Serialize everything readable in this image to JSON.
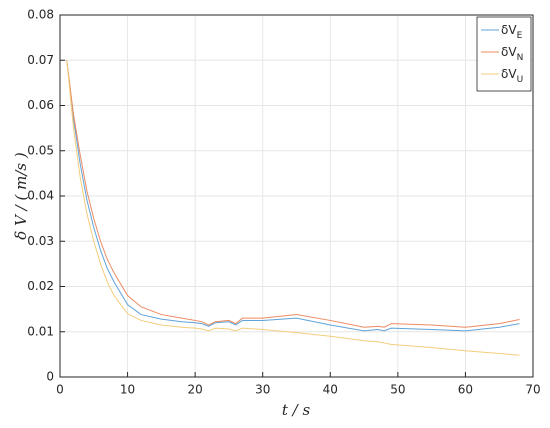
{
  "chart_data": {
    "type": "line",
    "x_label": "t  / s",
    "y_label": "δ V / ( m/s )",
    "x": [
      1,
      2,
      3,
      4,
      5,
      6,
      7,
      8,
      10,
      12,
      15,
      18,
      20,
      21,
      22,
      23,
      25,
      26,
      27,
      30,
      35,
      40,
      45,
      47,
      48,
      49,
      55,
      60,
      65,
      68
    ],
    "series": [
      {
        "name": "δVE",
        "color": "#5fa3d9",
        "values": [
          0.07,
          0.057,
          0.047,
          0.039,
          0.033,
          0.028,
          0.024,
          0.021,
          0.016,
          0.0138,
          0.0128,
          0.0122,
          0.012,
          0.0118,
          0.0112,
          0.012,
          0.0122,
          0.0115,
          0.0125,
          0.0125,
          0.013,
          0.0115,
          0.0102,
          0.0105,
          0.0102,
          0.0108,
          0.0105,
          0.0102,
          0.011,
          0.0118
        ]
      },
      {
        "name": "δVN",
        "color": "#ec8b62",
        "values": [
          0.07,
          0.058,
          0.049,
          0.041,
          0.035,
          0.03,
          0.026,
          0.023,
          0.018,
          0.0155,
          0.0138,
          0.013,
          0.0125,
          0.0122,
          0.0115,
          0.0122,
          0.0125,
          0.0118,
          0.013,
          0.013,
          0.0138,
          0.0125,
          0.011,
          0.0112,
          0.011,
          0.0118,
          0.0115,
          0.011,
          0.0118,
          0.0127
        ]
      },
      {
        "name": "δVU",
        "color": "#f4cd7c",
        "values": [
          0.07,
          0.055,
          0.044,
          0.036,
          0.03,
          0.025,
          0.021,
          0.018,
          0.014,
          0.0125,
          0.0115,
          0.011,
          0.0108,
          0.0106,
          0.0102,
          0.0108,
          0.0106,
          0.0102,
          0.0108,
          0.0105,
          0.0098,
          0.009,
          0.008,
          0.0078,
          0.0075,
          0.0072,
          0.0065,
          0.0058,
          0.0052,
          0.0048
        ]
      }
    ],
    "xlim": [
      0,
      70
    ],
    "xticks": [
      0,
      10,
      20,
      30,
      40,
      50,
      60,
      70
    ],
    "ylim": [
      0,
      0.08
    ],
    "yticks": [
      0,
      0.01,
      0.02,
      0.03,
      0.04,
      0.05,
      0.06,
      0.07,
      0.08
    ],
    "grid": true,
    "legend": "top-right"
  }
}
